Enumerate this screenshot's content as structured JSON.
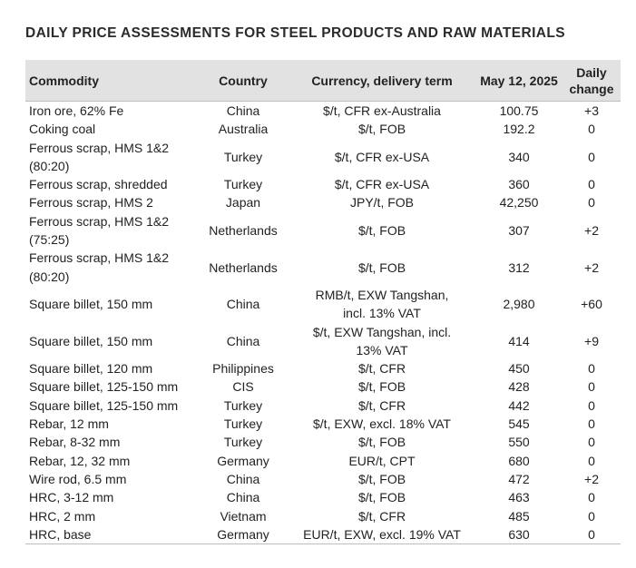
{
  "title": "DAILY PRICE ASSESSMENTS FOR STEEL PRODUCTS AND RAW MATERIALS",
  "columns": {
    "commodity": "Commodity",
    "country": "Country",
    "currency": "Currency, delivery term",
    "price": "May 12, 2025",
    "change_line1": "Daily",
    "change_line2": "change"
  },
  "rows": [
    {
      "commodity": [
        "Iron ore, 62% Fe"
      ],
      "country": "China",
      "currency": [
        "$/t, CFR ex-Australia"
      ],
      "price": "100.75",
      "change": "+3"
    },
    {
      "commodity": [
        "Coking coal"
      ],
      "country": "Australia",
      "currency": [
        "$/t, FOB"
      ],
      "price": "192.2",
      "change": "0"
    },
    {
      "commodity": [
        "Ferrous scrap, HMS 1&2",
        "(80:20)"
      ],
      "country": "Turkey",
      "currency": [
        "$/t, CFR ex-USA"
      ],
      "price": "340",
      "change": "0"
    },
    {
      "commodity": [
        "Ferrous scrap, shredded"
      ],
      "country": "Turkey",
      "currency": [
        "$/t, CFR ex-USA"
      ],
      "price": "360",
      "change": "0"
    },
    {
      "commodity": [
        "Ferrous scrap, HMS 2"
      ],
      "country": "Japan",
      "currency": [
        "JPY/t, FOB"
      ],
      "price": "42,250",
      "change": "0"
    },
    {
      "commodity": [
        "Ferrous scrap, HMS 1&2",
        "(75:25)"
      ],
      "country": "Netherlands",
      "currency": [
        "$/t, FOB"
      ],
      "price": "307",
      "change": "+2"
    },
    {
      "commodity": [
        "Ferrous scrap, HMS 1&2",
        "(80:20)"
      ],
      "country": "Netherlands",
      "currency": [
        "$/t, FOB"
      ],
      "price": "312",
      "change": "+2"
    },
    {
      "commodity": [
        "Square billet, 150 mm"
      ],
      "country": "China",
      "currency": [
        "RMB/t, EXW Tangshan,",
        "incl. 13% VAT"
      ],
      "price": "2,980",
      "change": "+60"
    },
    {
      "commodity": [
        "Square billet, 150 mm"
      ],
      "country": "China",
      "currency": [
        "$/t, EXW Tangshan, incl.",
        "13% VAT"
      ],
      "price": "414",
      "change": "+9"
    },
    {
      "commodity": [
        "Square billet, 120 mm"
      ],
      "country": "Philippines",
      "currency": [
        "$/t, CFR"
      ],
      "price": "450",
      "change": "0"
    },
    {
      "commodity": [
        "Square billet, 125-150 mm"
      ],
      "country": "CIS",
      "currency": [
        "$/t, FOB"
      ],
      "price": "428",
      "change": "0"
    },
    {
      "commodity": [
        "Square billet, 125-150 mm"
      ],
      "country": "Turkey",
      "currency": [
        "$/t, CFR"
      ],
      "price": "442",
      "change": "0"
    },
    {
      "commodity": [
        "Rebar, 12 mm"
      ],
      "country": "Turkey",
      "currency": [
        "$/t, EXW, excl. 18% VAT"
      ],
      "price": "545",
      "change": "0"
    },
    {
      "commodity": [
        "Rebar, 8-32 mm"
      ],
      "country": "Turkey",
      "currency": [
        "$/t, FOB"
      ],
      "price": "550",
      "change": "0"
    },
    {
      "commodity": [
        "Rebar, 12, 32 mm"
      ],
      "country": "Germany",
      "currency": [
        "EUR/t, CPT"
      ],
      "price": "680",
      "change": "0"
    },
    {
      "commodity": [
        "Wire rod, 6.5 mm"
      ],
      "country": "China",
      "currency": [
        "$/t, FOB"
      ],
      "price": "472",
      "change": "+2"
    },
    {
      "commodity": [
        "HRC, 3-12 mm"
      ],
      "country": "China",
      "currency": [
        "$/t, FOB"
      ],
      "price": "463",
      "change": "0"
    },
    {
      "commodity": [
        "HRC, 2 mm"
      ],
      "country": "Vietnam",
      "currency": [
        "$/t, CFR"
      ],
      "price": "485",
      "change": "0"
    },
    {
      "commodity": [
        "HRC, base"
      ],
      "country": "Germany",
      "currency": [
        "EUR/t, EXW, excl. 19% VAT"
      ],
      "price": "630",
      "change": "0"
    }
  ]
}
